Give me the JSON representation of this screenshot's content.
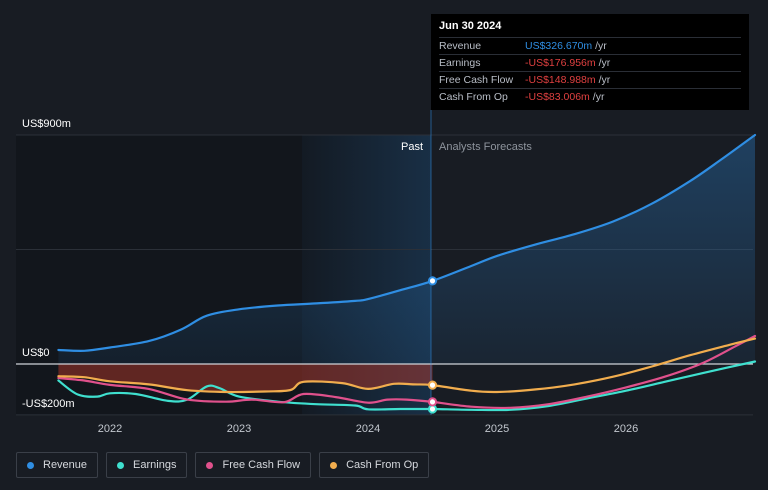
{
  "chart_data": {
    "type": "line",
    "x_ticks": [
      "2022",
      "2023",
      "2024",
      "2025",
      "2026"
    ],
    "y_tick_labels": [
      "US$900m",
      "US$0",
      "-US$200m"
    ],
    "ylim": [
      -200,
      900
    ],
    "divider_labels": {
      "past": "Past",
      "forecast": "Analysts Forecasts"
    },
    "highlight_date": "2024.5",
    "series": [
      {
        "name": "Revenue",
        "color": "#2f8ee3",
        "points": [
          [
            2021.6,
            55
          ],
          [
            2021.8,
            52
          ],
          [
            2022.0,
            65
          ],
          [
            2022.3,
            90
          ],
          [
            2022.55,
            135
          ],
          [
            2022.75,
            190
          ],
          [
            2023.0,
            215
          ],
          [
            2023.3,
            230
          ],
          [
            2023.6,
            238
          ],
          [
            2023.9,
            248
          ],
          [
            2024.0,
            255
          ],
          [
            2024.25,
            290
          ],
          [
            2024.5,
            326.67
          ],
          [
            2024.8,
            385
          ],
          [
            2025.0,
            425
          ],
          [
            2025.3,
            470
          ],
          [
            2025.6,
            510
          ],
          [
            2025.9,
            560
          ],
          [
            2026.2,
            630
          ],
          [
            2026.5,
            720
          ],
          [
            2026.75,
            808
          ],
          [
            2027.0,
            900
          ]
        ]
      },
      {
        "name": "Earnings",
        "color": "#3fe0cf",
        "points": [
          [
            2021.6,
            -65
          ],
          [
            2021.75,
            -120
          ],
          [
            2021.9,
            -128
          ],
          [
            2022.0,
            -115
          ],
          [
            2022.2,
            -118
          ],
          [
            2022.45,
            -145
          ],
          [
            2022.6,
            -140
          ],
          [
            2022.75,
            -88
          ],
          [
            2022.85,
            -95
          ],
          [
            2023.0,
            -128
          ],
          [
            2023.3,
            -148
          ],
          [
            2023.6,
            -158
          ],
          [
            2023.9,
            -163
          ],
          [
            2024.0,
            -178
          ],
          [
            2024.25,
            -177
          ],
          [
            2024.5,
            -176.96
          ],
          [
            2024.8,
            -180
          ],
          [
            2025.1,
            -180
          ],
          [
            2025.4,
            -165
          ],
          [
            2025.7,
            -135
          ],
          [
            2026.0,
            -105
          ],
          [
            2026.3,
            -70
          ],
          [
            2026.6,
            -35
          ],
          [
            2027.0,
            10
          ]
        ]
      },
      {
        "name": "Free Cash Flow",
        "color": "#e0518c",
        "points": [
          [
            2021.6,
            -55
          ],
          [
            2021.8,
            -65
          ],
          [
            2022.0,
            -82
          ],
          [
            2022.3,
            -98
          ],
          [
            2022.6,
            -140
          ],
          [
            2022.9,
            -148
          ],
          [
            2023.1,
            -140
          ],
          [
            2023.35,
            -150
          ],
          [
            2023.5,
            -118
          ],
          [
            2023.75,
            -130
          ],
          [
            2024.0,
            -152
          ],
          [
            2024.15,
            -140
          ],
          [
            2024.3,
            -140
          ],
          [
            2024.5,
            -148.99
          ],
          [
            2024.8,
            -168
          ],
          [
            2025.1,
            -172
          ],
          [
            2025.4,
            -158
          ],
          [
            2025.7,
            -128
          ],
          [
            2026.0,
            -92
          ],
          [
            2026.3,
            -50
          ],
          [
            2026.6,
            5
          ],
          [
            2026.85,
            70
          ],
          [
            2027.0,
            110
          ]
        ]
      },
      {
        "name": "Cash From Op",
        "color": "#f1ad4e",
        "points": [
          [
            2021.6,
            -48
          ],
          [
            2021.8,
            -52
          ],
          [
            2022.0,
            -68
          ],
          [
            2022.3,
            -80
          ],
          [
            2022.6,
            -103
          ],
          [
            2022.9,
            -110
          ],
          [
            2023.2,
            -108
          ],
          [
            2023.4,
            -102
          ],
          [
            2023.5,
            -70
          ],
          [
            2023.8,
            -75
          ],
          [
            2024.0,
            -98
          ],
          [
            2024.2,
            -78
          ],
          [
            2024.35,
            -80
          ],
          [
            2024.5,
            -83.01
          ],
          [
            2024.8,
            -105
          ],
          [
            2025.0,
            -110
          ],
          [
            2025.3,
            -100
          ],
          [
            2025.6,
            -80
          ],
          [
            2025.9,
            -50
          ],
          [
            2026.2,
            -10
          ],
          [
            2026.5,
            35
          ],
          [
            2026.8,
            75
          ],
          [
            2027.0,
            100
          ]
        ]
      }
    ]
  },
  "tooltip": {
    "date": "Jun 30 2024",
    "unit": "/yr",
    "rows": [
      {
        "label": "Revenue",
        "value": "US$326.670m",
        "color": "#2f8ee3"
      },
      {
        "label": "Earnings",
        "value": "-US$176.956m",
        "color": "#e04040"
      },
      {
        "label": "Free Cash Flow",
        "value": "-US$148.988m",
        "color": "#e04040"
      },
      {
        "label": "Cash From Op",
        "value": "-US$83.006m",
        "color": "#e04040"
      }
    ]
  },
  "legend": [
    {
      "label": "Revenue",
      "color": "#2f8ee3"
    },
    {
      "label": "Earnings",
      "color": "#3fe0cf"
    },
    {
      "label": "Free Cash Flow",
      "color": "#e0518c"
    },
    {
      "label": "Cash From Op",
      "color": "#f1ad4e"
    }
  ]
}
